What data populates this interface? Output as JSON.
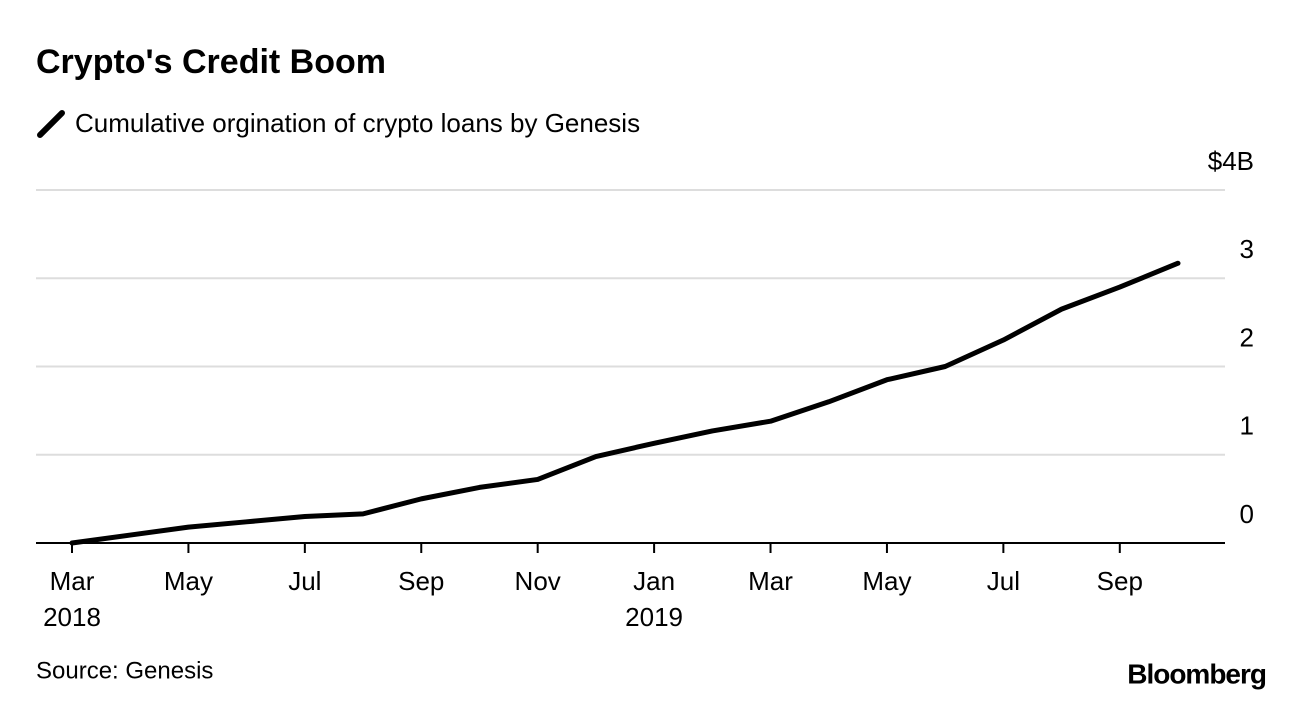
{
  "chart_data": {
    "type": "line",
    "title": "Crypto's Credit Boom",
    "source": "Source: Genesis",
    "brand": "Bloomberg",
    "x": [
      "2018-03",
      "2018-04",
      "2018-05",
      "2018-06",
      "2018-07",
      "2018-08",
      "2018-09",
      "2018-10",
      "2018-11",
      "2018-12",
      "2019-01",
      "2019-02",
      "2019-03",
      "2019-04",
      "2019-05",
      "2019-06",
      "2019-07",
      "2019-08",
      "2019-09",
      "2019-10"
    ],
    "series": [
      {
        "name": "Cumulative orgination of crypto loans by Genesis",
        "color": "#000000",
        "values": [
          0,
          0.09,
          0.18,
          0.24,
          0.3,
          0.33,
          0.5,
          0.63,
          0.72,
          0.98,
          1.13,
          1.27,
          1.38,
          1.6,
          1.85,
          2.0,
          2.3,
          2.65,
          2.9,
          3.17
        ]
      }
    ],
    "xlim": [
      "2018-03",
      "2019-10"
    ],
    "xticks": [
      {
        "value": "2018-03",
        "label": "Mar"
      },
      {
        "value": "2018-05",
        "label": "May"
      },
      {
        "value": "2018-07",
        "label": "Jul"
      },
      {
        "value": "2018-09",
        "label": "Sep"
      },
      {
        "value": "2018-11",
        "label": "Nov"
      },
      {
        "value": "2019-01",
        "label": "Jan"
      },
      {
        "value": "2019-03",
        "label": "Mar"
      },
      {
        "value": "2019-05",
        "label": "May"
      },
      {
        "value": "2019-07",
        "label": "Jul"
      },
      {
        "value": "2019-09",
        "label": "Sep"
      }
    ],
    "xtick_years": [
      {
        "value": "2018-03",
        "label": "2018"
      },
      {
        "value": "2019-01",
        "label": "2019"
      }
    ],
    "ylim": [
      0,
      4
    ],
    "yticks": [
      0,
      1,
      2,
      3,
      {
        "value": 4,
        "label": "$4B"
      }
    ],
    "grid": true
  }
}
